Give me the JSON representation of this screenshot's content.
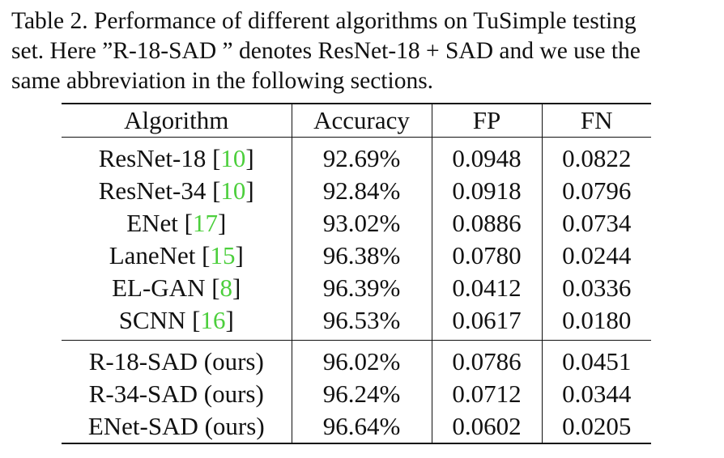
{
  "caption": {
    "line1": "Table 2. Performance of different algorithms on TuSimple testing",
    "line2": "set. Here ”R-18-SAD ” denotes ResNet-18 + SAD and we use the",
    "line3": "same abbreviation in the following sections."
  },
  "table": {
    "headers": [
      "Algorithm",
      "Accuracy",
      "FP",
      "FN"
    ],
    "baselines": [
      {
        "name": "ResNet-18",
        "cite": "10",
        "accuracy": "92.69%",
        "fp": "0.0948",
        "fn": "0.0822"
      },
      {
        "name": "ResNet-34",
        "cite": "10",
        "accuracy": "92.84%",
        "fp": "0.0918",
        "fn": "0.0796"
      },
      {
        "name": "ENet",
        "cite": "17",
        "accuracy": "93.02%",
        "fp": "0.0886",
        "fn": "0.0734"
      },
      {
        "name": "LaneNet",
        "cite": "15",
        "accuracy": "96.38%",
        "fp": "0.0780",
        "fn": "0.0244"
      },
      {
        "name": "EL-GAN",
        "cite": "8",
        "accuracy": "96.39%",
        "fp": "0.0412",
        "fn": "0.0336"
      },
      {
        "name": "SCNN",
        "cite": "16",
        "accuracy": "96.53%",
        "fp": "0.0617",
        "fn": "0.0180"
      }
    ],
    "ours": [
      {
        "name": "R-18-SAD (ours)",
        "accuracy": "96.02%",
        "fp": "0.0786",
        "fn": "0.0451"
      },
      {
        "name": "R-34-SAD (ours)",
        "accuracy": "96.24%",
        "fp": "0.0712",
        "fn": "0.0344"
      },
      {
        "name": "ENet-SAD (ours)",
        "accuracy": "96.64%",
        "fp": "0.0602",
        "fn": "0.0205"
      }
    ],
    "cite_color": "#4ccf3c"
  }
}
